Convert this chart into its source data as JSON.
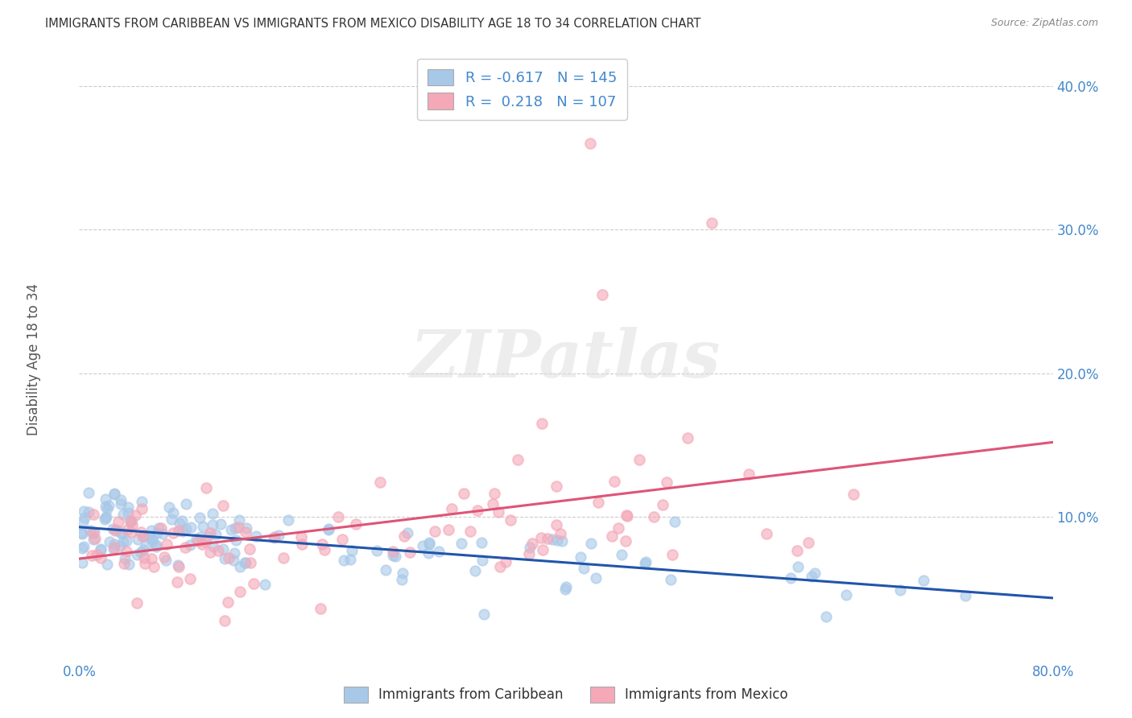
{
  "title": "IMMIGRANTS FROM CARIBBEAN VS IMMIGRANTS FROM MEXICO DISABILITY AGE 18 TO 34 CORRELATION CHART",
  "source": "Source: ZipAtlas.com",
  "ylabel": "Disability Age 18 to 34",
  "xlim": [
    0.0,
    0.8
  ],
  "ylim": [
    0.0,
    0.42
  ],
  "yticks": [
    0.1,
    0.2,
    0.3,
    0.4
  ],
  "xticks": [
    0.0,
    0.1,
    0.2,
    0.3,
    0.4,
    0.5,
    0.6,
    0.7,
    0.8
  ],
  "blue_scatter_color": "#a8c8e8",
  "pink_scatter_color": "#f4a8b8",
  "blue_line_color": "#2255aa",
  "pink_line_color": "#dd5577",
  "blue_r": -0.617,
  "blue_n": 145,
  "pink_r": 0.218,
  "pink_n": 107,
  "watermark": "ZIPatlas",
  "background_color": "#ffffff",
  "grid_color": "#cccccc",
  "title_color": "#333333",
  "tick_label_color": "#4488cc",
  "ylabel_color": "#555555"
}
